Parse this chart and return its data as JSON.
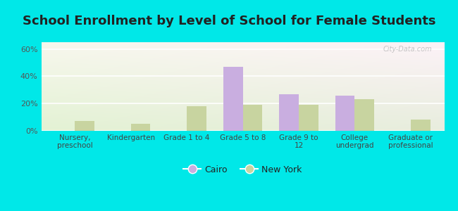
{
  "title": "School Enrollment by Level of School for Female Students",
  "categories": [
    "Nursery,\npreschool",
    "Kindergarten",
    "Grade 1 to 4",
    "Grade 5 to 8",
    "Grade 9 to\n12",
    "College\nundergrad",
    "Graduate or\nprofessional"
  ],
  "cairo": [
    0,
    0,
    0,
    47,
    27,
    26,
    0
  ],
  "new_york": [
    7,
    5,
    18,
    19,
    19,
    23,
    8
  ],
  "cairo_color": "#c9aee0",
  "new_york_color": "#c8d4a0",
  "bg_color": "#00e8e8",
  "ylabel_ticks": [
    "0%",
    "20%",
    "40%",
    "60%"
  ],
  "yticks": [
    0,
    20,
    40,
    60
  ],
  "ylim": [
    0,
    65
  ],
  "title_fontsize": 13,
  "legend_cairo": "Cairo",
  "legend_newyork": "New York",
  "watermark": "City-Data.com"
}
